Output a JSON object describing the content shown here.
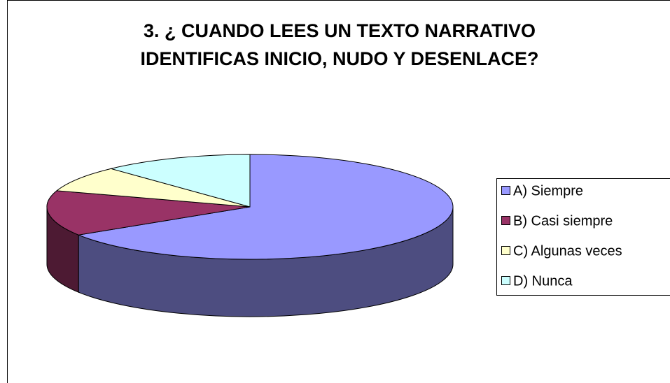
{
  "chart_data": {
    "type": "pie3d",
    "title": [
      "3. ¿ CUANDO LEES UN TEXTO NARRATIVO",
      "IDENTIFICAS INICIO, NUDO Y DESENLACE?"
    ],
    "categories": [
      "A) Siempre",
      "B) Casi siempre",
      "C) Algunas veces",
      "D) Nunca"
    ],
    "values": [
      66,
      14,
      8,
      12
    ],
    "colors": [
      "#9999ff",
      "#993366",
      "#ffffcc",
      "#ccffff"
    ],
    "side_colors": [
      "#4d4d80",
      "#4d1a33",
      "#808066",
      "#668080"
    ],
    "legend": "right"
  }
}
